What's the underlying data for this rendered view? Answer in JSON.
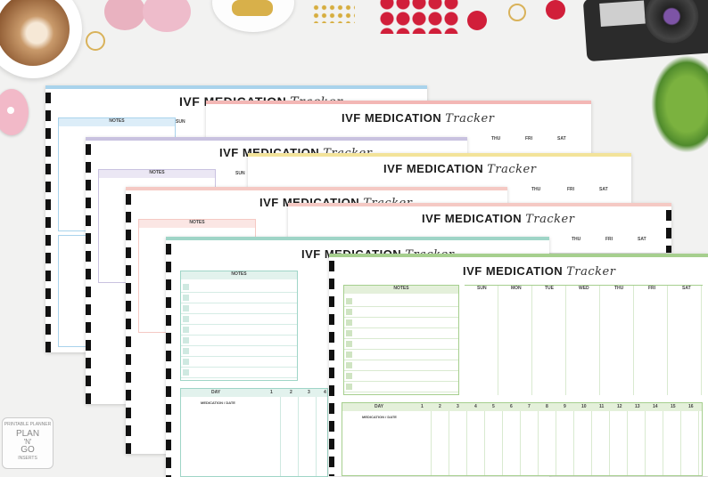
{
  "product": {
    "title_main": "IVF MEDICATION",
    "title_script": "Tracker"
  },
  "labels": {
    "notes": "NOTES",
    "day": "DAY",
    "medication_date": "MEDICATION / DATE",
    "sun": "SUN",
    "mon": "MON",
    "tue": "TUE",
    "wed": "WED",
    "thu": "THU",
    "fri": "FRI",
    "sat": "SAT",
    "days_short": [
      "1",
      "2",
      "3",
      "4"
    ],
    "days_full": [
      "1",
      "2",
      "3",
      "4",
      "5",
      "6",
      "7",
      "8",
      "9",
      "10",
      "11",
      "12",
      "13",
      "14",
      "15",
      "16"
    ]
  },
  "watermark": {
    "arc_top": "PRINTABLE PLANNER",
    "line1": "PLAN",
    "line2": "'N'",
    "line3": "GO",
    "arc_bottom": "INSERTS"
  },
  "colors": {
    "blue": "#a9d3ec",
    "pink": "#f3b7b5",
    "lavender": "#c9c2e0",
    "yellow": "#f3e39a",
    "blush": "#f5c9c4",
    "teal": "#9fd5c7",
    "green": "#a6cf8e",
    "green_fill": "#e4f0da"
  }
}
